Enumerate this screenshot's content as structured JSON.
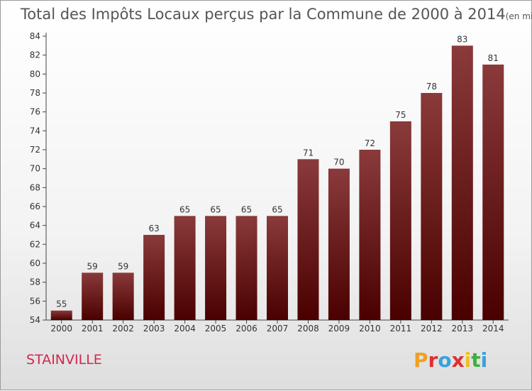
{
  "chart_data": {
    "type": "bar",
    "title": "Total des Impôts Locaux perçus par la Commune de 2000 à 2014",
    "subtitle": "(en milliers d'€)",
    "categories": [
      "2000",
      "2001",
      "2002",
      "2003",
      "2004",
      "2005",
      "2006",
      "2007",
      "2008",
      "2009",
      "2010",
      "2011",
      "2012",
      "2013",
      "2014"
    ],
    "values": [
      55,
      59,
      59,
      63,
      65,
      65,
      65,
      65,
      71,
      70,
      72,
      75,
      78,
      83,
      81
    ],
    "y_ticks": [
      54,
      56,
      58,
      60,
      62,
      64,
      66,
      68,
      70,
      72,
      74,
      76,
      78,
      80,
      82,
      84
    ],
    "ylim": [
      54,
      84
    ],
    "xlabel": "",
    "ylabel": "",
    "grid": false,
    "bar_color_top": "#8a3a3a",
    "bar_color_bottom": "#4a0000"
  },
  "commune_name": "STAINVILLE",
  "logo": {
    "letters": [
      "P",
      "r",
      "o",
      "x",
      "i",
      "t",
      "i"
    ],
    "colors": [
      "#f0a020",
      "#e03030",
      "#3aa0e0",
      "#e03030",
      "#f0c020",
      "#40b040",
      "#3aa0e0"
    ]
  }
}
